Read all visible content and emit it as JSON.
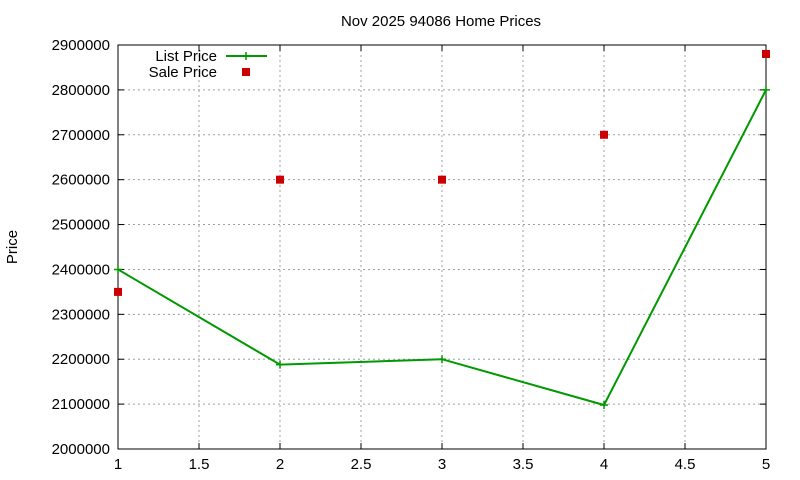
{
  "chart_data": {
    "type": "line",
    "title": "Nov 2025 94086 Home Prices",
    "xlabel": "",
    "ylabel": "Price",
    "xlim": [
      1,
      5
    ],
    "ylim": [
      2000000,
      2900000
    ],
    "x_ticks": [
      "1",
      "1.5",
      "2",
      "2.5",
      "3",
      "3.5",
      "4",
      "4.5",
      "5"
    ],
    "y_ticks": [
      "2000000",
      "2100000",
      "2200000",
      "2300000",
      "2400000",
      "2500000",
      "2600000",
      "2700000",
      "2800000",
      "2900000"
    ],
    "grid": true,
    "legend_position": "top-left",
    "series": [
      {
        "name": "List Price",
        "style": "lines+points",
        "color": "#009900",
        "marker": "plus",
        "x": [
          1,
          2,
          3,
          4,
          5
        ],
        "y": [
          2400000,
          2188000,
          2200000,
          2098000,
          2800000
        ]
      },
      {
        "name": "Sale Price",
        "style": "points",
        "color": "#cc0000",
        "marker": "square",
        "x": [
          1,
          2,
          3,
          4,
          5
        ],
        "y": [
          2350000,
          2600000,
          2600000,
          2700000,
          2880000
        ]
      }
    ]
  }
}
